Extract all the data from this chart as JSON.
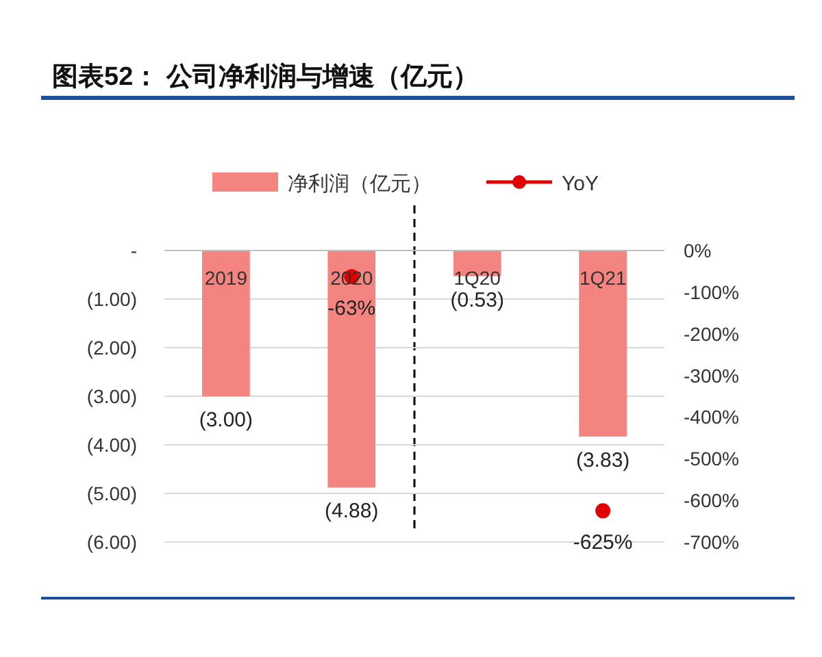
{
  "chart_data": {
    "type": "bar",
    "title": "图表52：  公司净利润与增速（亿元）",
    "categories": [
      "2019",
      "2020",
      "1Q20",
      "1Q21"
    ],
    "series": [
      {
        "name": "净利润（亿元）",
        "color": "#f4847f",
        "values": [
          -3.0,
          -4.88,
          -0.53,
          -3.83
        ],
        "value_labels": [
          "(3.00)",
          "(4.88)",
          "(0.53)",
          "(3.83)"
        ]
      },
      {
        "name": "YoY",
        "type": "scatter",
        "axis": "y2",
        "color": "#e00000",
        "values": [
          null,
          -63,
          null,
          -625
        ],
        "value_labels": [
          null,
          "-63%",
          null,
          "-625%"
        ]
      }
    ],
    "ylim": [
      -6,
      0
    ],
    "yticks": [
      {
        "value": 0,
        "label": "-"
      },
      {
        "value": -1,
        "label": "(1.00)"
      },
      {
        "value": -2,
        "label": "(2.00)"
      },
      {
        "value": -3,
        "label": "(3.00)"
      },
      {
        "value": -4,
        "label": "(4.00)"
      },
      {
        "value": -5,
        "label": "(5.00)"
      },
      {
        "value": -6,
        "label": "(6.00)"
      }
    ],
    "y2lim": [
      -700,
      0
    ],
    "y2ticks": [
      {
        "value": 0,
        "label": "0%"
      },
      {
        "value": -100,
        "label": "-100%"
      },
      {
        "value": -200,
        "label": "-200%"
      },
      {
        "value": -300,
        "label": "-300%"
      },
      {
        "value": -400,
        "label": "-400%"
      },
      {
        "value": -500,
        "label": "-500%"
      },
      {
        "value": -600,
        "label": "-600%"
      },
      {
        "value": -700,
        "label": "-700%"
      }
    ],
    "grid": "y",
    "legend": "top",
    "marker": "circle"
  }
}
